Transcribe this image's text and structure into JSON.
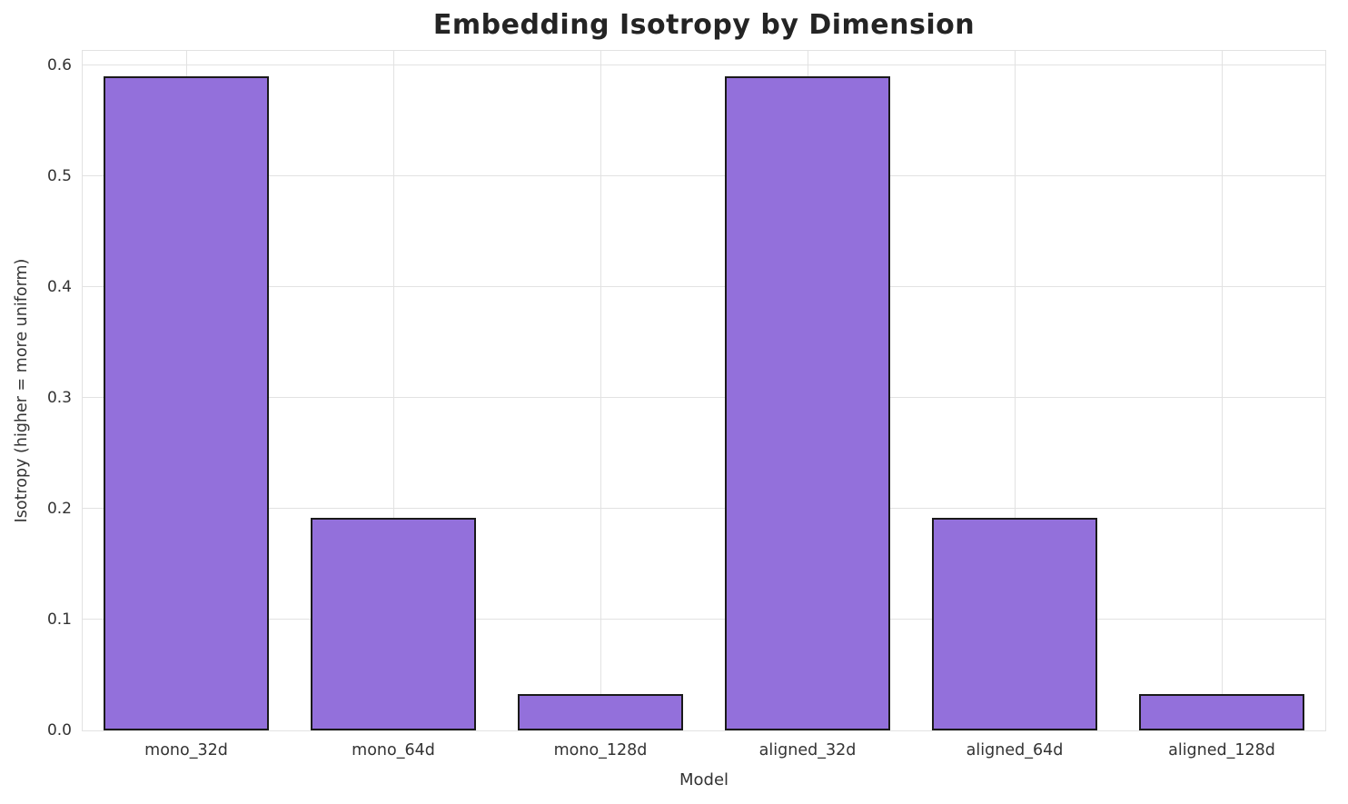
{
  "chart_data": {
    "type": "bar",
    "title": "Embedding Isotropy by Dimension",
    "xlabel": "Model",
    "ylabel": "Isotropy (higher = more uniform)",
    "categories": [
      "mono_32d",
      "mono_64d",
      "mono_128d",
      "aligned_32d",
      "aligned_64d",
      "aligned_128d"
    ],
    "values": [
      0.59,
      0.192,
      0.033,
      0.59,
      0.192,
      0.033
    ],
    "ylim": [
      0,
      0.613
    ],
    "yticks": [
      0.0,
      0.1,
      0.2,
      0.3,
      0.4,
      0.5,
      0.6
    ],
    "ytick_labels": [
      "0.0",
      "0.1",
      "0.2",
      "0.3",
      "0.4",
      "0.5",
      "0.6"
    ],
    "legend": "none",
    "grid": true,
    "bar_width_fraction": 0.8,
    "colors": {
      "bar_fill": "#9370DB",
      "bar_edge": "#1a1a1a",
      "grid": "#e2e2e2",
      "title_text": "#242424",
      "tick_text": "#333333",
      "background": "#ffffff"
    }
  }
}
